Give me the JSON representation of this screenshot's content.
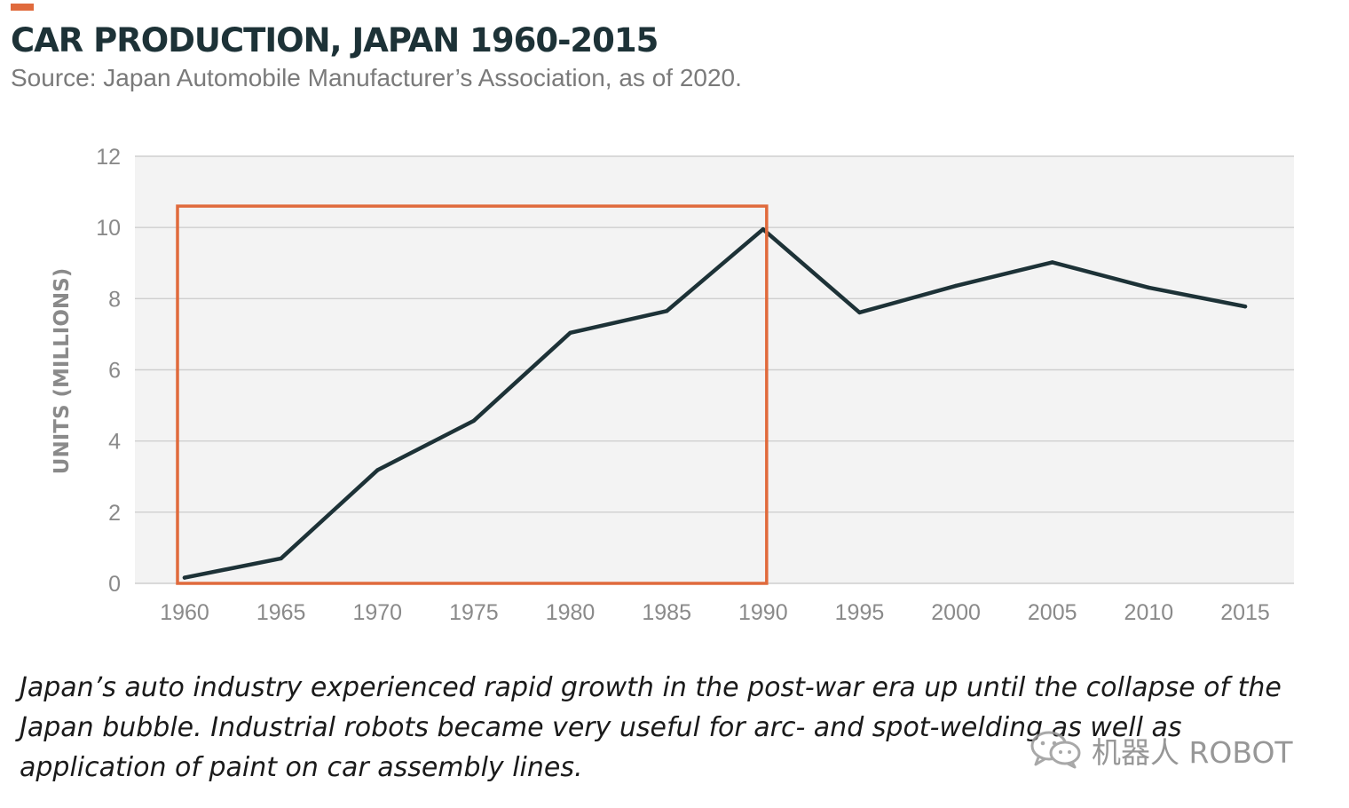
{
  "header": {
    "title": "CAR PRODUCTION, JAPAN 1960-2015",
    "subtitle": "Source: Japan Automobile Manufacturer’s Association, as of 2020."
  },
  "caption": {
    "text": "Japan’s auto industry experienced rapid growth in the post-war era up until the collapse of the Japan bubble. Industrial robots became very useful for arc- and spot-welding as well as application of paint on car assembly lines."
  },
  "watermark": {
    "text": "机器人 ROBOT",
    "icon": "wechat-icon"
  },
  "colors": {
    "accent": "#e06a3c",
    "line": "#1d3237",
    "plot_background": "#f3f3f3",
    "grid": "#cfcfcf",
    "tick_text": "#8a8a8a",
    "highlight_box": "#e06a3c"
  },
  "chart_data": {
    "type": "line",
    "title": "CAR PRODUCTION, JAPAN 1960-2015",
    "xlabel": "",
    "ylabel": "UNITS (MILLIONS)",
    "x": [
      1960,
      1965,
      1970,
      1975,
      1980,
      1985,
      1990,
      1995,
      2000,
      2005,
      2010,
      2015
    ],
    "x_tick_labels": [
      "1960",
      "1965",
      "1970",
      "1975",
      "1980",
      "1985",
      "1990",
      "1995",
      "2000",
      "2005",
      "2010",
      "2015"
    ],
    "y_ticks": [
      0,
      2,
      4,
      6,
      8,
      10,
      12
    ],
    "ylim": [
      0,
      12
    ],
    "grid": true,
    "legend": "none",
    "series": [
      {
        "values": [
          0.16,
          0.7,
          3.18,
          4.57,
          7.04,
          7.65,
          9.95,
          7.61,
          8.36,
          9.02,
          8.31,
          7.78
        ]
      }
    ],
    "annotations": [
      {
        "type": "highlight-box",
        "x_range": [
          1960,
          1990
        ],
        "y_range": [
          0,
          10.6
        ],
        "color": "#e06a3c"
      }
    ]
  }
}
